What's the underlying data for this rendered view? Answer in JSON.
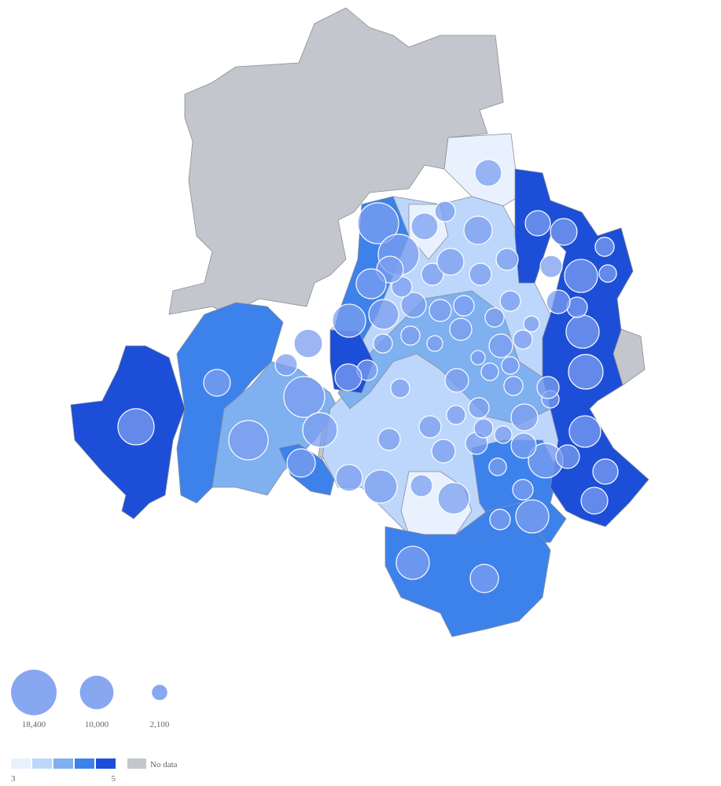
{
  "map": {
    "bubbles": {
      "color": "#7b9df0",
      "values": [
        11600,
        6300,
        13700,
        14800,
        10600,
        7100,
        6300,
        9700,
        4300,
        8800,
        9700,
        7100,
        3700,
        9700,
        3700,
        2700,
        10600,
        8800,
        5600,
        6300,
        4900,
        10600,
        9700,
        3700,
        4900,
        9700,
        2700,
        3200,
        6300,
        5600,
        4300,
        4300,
        3700,
        2200,
        3200,
        4900,
        3200,
        2700,
        3200,
        2700,
        1800,
        4900,
        3700,
        4300,
        4300,
        2200,
        3200,
        5600,
        3700,
        3200,
        7900,
        9700,
        3700,
        6300,
        7100,
        4300,
        3200,
        4300,
        4300,
        4900,
        3200,
        3700,
        4300,
        3200,
        2700,
        5600,
        6300,
        2700,
        4300,
        7100,
        3700,
        6300,
        14800,
        14800,
        6300,
        7900,
        4300,
        6300,
        4300,
        6300
      ]
    },
    "size_legend": [
      {
        "value": 18400,
        "label": "18,400"
      },
      {
        "value": 10000,
        "label": "10,000"
      },
      {
        "value": 2100,
        "label": "2,100"
      }
    ],
    "color_scale": {
      "colors": [
        "#e8f1fd",
        "#bcd7fb",
        "#7fb0f0",
        "#3d82eb",
        "#1c4ed8"
      ],
      "min": 3,
      "max": 5
    },
    "no_data": {
      "label": "No data",
      "color": "#c3c6cc"
    }
  }
}
